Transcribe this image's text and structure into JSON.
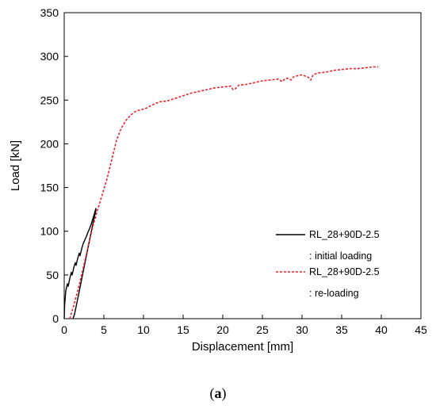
{
  "caption": {
    "open": "(",
    "letter": "a",
    "close": ")"
  },
  "chart_data": {
    "type": "line",
    "xlabel": "Displacement [mm]",
    "ylabel": "Load [kN]",
    "xlim": [
      0,
      45
    ],
    "ylim": [
      0,
      350
    ],
    "xticks": [
      0,
      5,
      10,
      15,
      20,
      25,
      30,
      35,
      40,
      45
    ],
    "yticks": [
      0,
      50,
      100,
      150,
      200,
      250,
      300,
      350
    ],
    "grid": false,
    "legend_position": "lower-right",
    "series": [
      {
        "name": "RL_28+90D-2.5",
        "note": ": initial loading",
        "color": "#000000",
        "style": "solid",
        "x": [
          0,
          0.05,
          0.2,
          0.4,
          0.5,
          0.7,
          0.9,
          1.0,
          1.2,
          1.4,
          1.5,
          1.7,
          1.9,
          2.0,
          2.2,
          2.4,
          2.6,
          2.8,
          3.0,
          3.2,
          3.4,
          3.6,
          3.8,
          4.0,
          4.0,
          3.6,
          3.2,
          2.8,
          2.4,
          2.0,
          1.6,
          1.3,
          1.1
        ],
        "y": [
          0,
          15,
          32,
          40,
          37,
          46,
          53,
          50,
          58,
          64,
          61,
          69,
          75,
          72,
          80,
          86,
          90,
          94,
          99,
          103,
          108,
          114,
          120,
          126,
          124,
          108,
          90,
          72,
          54,
          36,
          18,
          5,
          0
        ]
      },
      {
        "name": "RL_28+90D-2.5",
        "note": ": re-loading",
        "color": "#e8232a",
        "style": "dashed",
        "x": [
          0.7,
          1.2,
          1.8,
          2.4,
          3.0,
          3.6,
          4.2,
          4.8,
          5.4,
          6.0,
          6.6,
          7.2,
          7.8,
          8.4,
          9.0,
          9.6,
          10.2,
          11.0,
          12.0,
          13.0,
          14.0,
          15.0,
          16.0,
          17.0,
          18.0,
          19.0,
          20.0,
          21.0,
          21.3,
          21.6,
          22.0,
          23.0,
          24.0,
          25.0,
          26.0,
          27.0,
          27.5,
          27.8,
          28.2,
          28.6,
          29.0,
          30.0,
          30.8,
          31.1,
          31.4,
          32.0,
          33.0,
          34.0,
          35.0,
          36.0,
          37.0,
          38.0,
          39.0,
          39.6
        ],
        "y": [
          0,
          15,
          35,
          58,
          82,
          105,
          124,
          142,
          160,
          182,
          204,
          218,
          227,
          233,
          237,
          239,
          240,
          244,
          248,
          249,
          252,
          255,
          258,
          260,
          262,
          264,
          265,
          266,
          262,
          263,
          267,
          268,
          270,
          272,
          273,
          274,
          271,
          274,
          275,
          273,
          277,
          279,
          276,
          273,
          279,
          281,
          282,
          284,
          285,
          286,
          286,
          287,
          288,
          288
        ]
      }
    ]
  }
}
